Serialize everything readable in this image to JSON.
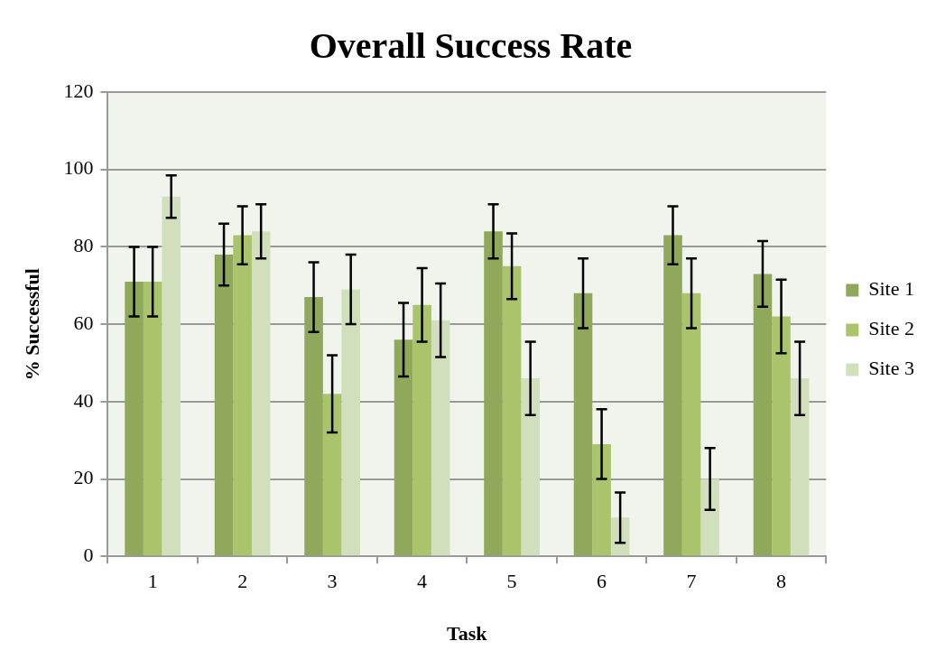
{
  "chart_data": {
    "type": "bar",
    "title": "Overall Success Rate",
    "xlabel": "Task",
    "ylabel": "% Successful",
    "categories": [
      "1",
      "2",
      "3",
      "4",
      "5",
      "6",
      "7",
      "8"
    ],
    "series": [
      {
        "name": "Site 1",
        "color": "#8fa85a",
        "values": [
          71,
          78,
          67,
          56,
          84,
          68,
          83,
          73
        ],
        "errors": [
          9,
          8,
          9,
          9.5,
          7,
          9,
          7.5,
          8.5
        ]
      },
      {
        "name": "Site 2",
        "color": "#a9c46b",
        "values": [
          71,
          83,
          42,
          65,
          75,
          29,
          68,
          62
        ],
        "errors": [
          9,
          7.5,
          10,
          9.5,
          8.5,
          9,
          9,
          9.5
        ]
      },
      {
        "name": "Site 3",
        "color": "#d1dfbc",
        "values": [
          93,
          84,
          69,
          61,
          46,
          10,
          20,
          46
        ],
        "errors": [
          5.5,
          7,
          9,
          9.5,
          9.5,
          6.5,
          8,
          9.5
        ]
      }
    ],
    "ylim": [
      0,
      120
    ],
    "yticks": [
      0,
      20,
      40,
      60,
      80,
      100,
      120
    ],
    "grid": "y",
    "legend": "right"
  }
}
